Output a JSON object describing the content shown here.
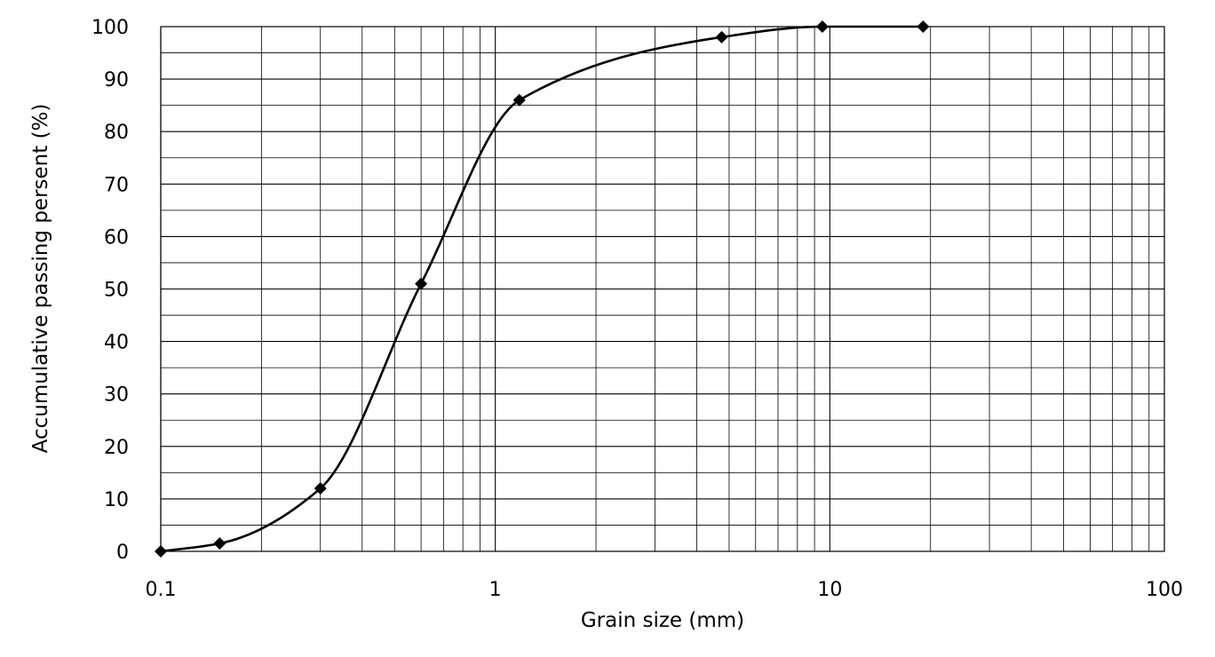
{
  "chart_data": {
    "type": "scatter",
    "title": "",
    "xlabel": "Grain size (mm)",
    "ylabel": "Accumulative passing persent (%)",
    "xscale": "log",
    "xlim": [
      0.1,
      100
    ],
    "ylim": [
      0,
      100
    ],
    "grid": true,
    "x_tick_labels": [
      "0.1",
      "1",
      "10",
      "100"
    ],
    "y_tick_labels": [
      "0",
      "10",
      "20",
      "30",
      "40",
      "50",
      "60",
      "70",
      "80",
      "90",
      "100"
    ],
    "series": [
      {
        "x": [
          0.1,
          0.15,
          0.3,
          0.6,
          1.18,
          4.75,
          9.5,
          19
        ],
        "y": [
          0,
          1.5,
          12,
          51,
          86,
          98,
          100,
          100
        ],
        "marker": "diamond",
        "line": "smooth",
        "color": "#000000"
      }
    ]
  }
}
